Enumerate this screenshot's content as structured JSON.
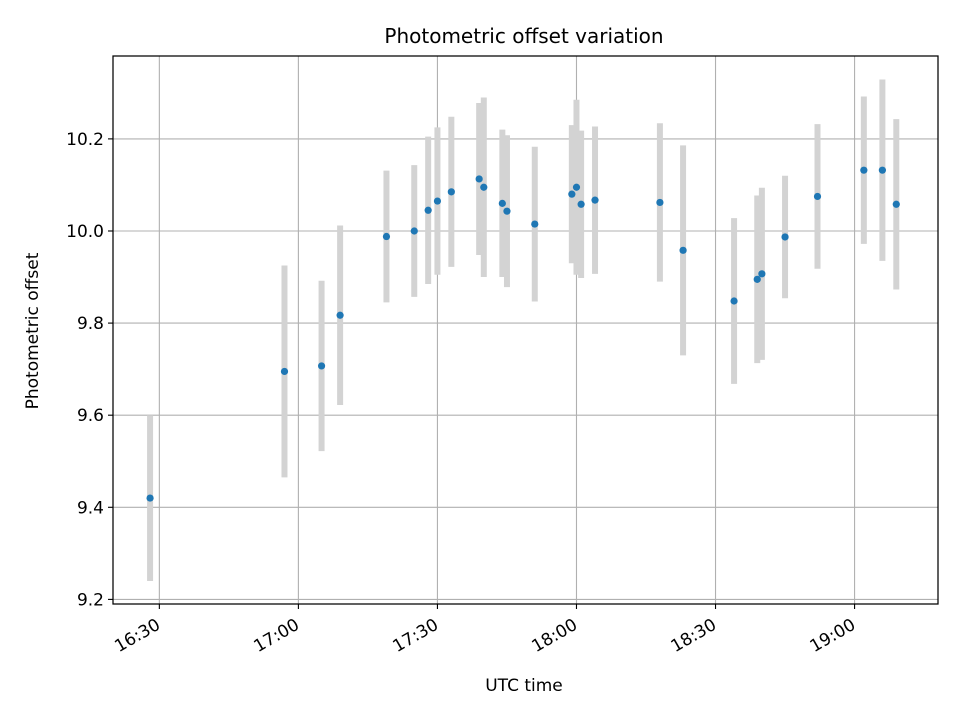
{
  "chart_data": {
    "type": "scatter",
    "title": "Photometric offset variation",
    "xlabel": "UTC time",
    "ylabel": "Photometric offset",
    "x_ticks": [
      "16:30",
      "17:00",
      "17:30",
      "18:00",
      "18:30",
      "19:00"
    ],
    "y_ticks": [
      "9.2",
      "9.4",
      "9.6",
      "9.8",
      "10.0",
      "10.2"
    ],
    "xlim": [
      "16:20",
      "19:18"
    ],
    "ylim": [
      9.19,
      10.38
    ],
    "grid": true,
    "colors": {
      "point": "#1f77b4",
      "errorbar": "#d3d3d3",
      "grid": "#b0b0b0"
    },
    "points": [
      {
        "x": "16:28",
        "y": 9.42,
        "yerr": 0.18
      },
      {
        "x": "16:57",
        "y": 9.695,
        "yerr": 0.23
      },
      {
        "x": "17:05",
        "y": 9.707,
        "yerr": 0.185
      },
      {
        "x": "17:09",
        "y": 9.817,
        "yerr": 0.195
      },
      {
        "x": "17:19",
        "y": 9.988,
        "yerr": 0.143
      },
      {
        "x": "17:25",
        "y": 10.0,
        "yerr": 0.143
      },
      {
        "x": "17:28",
        "y": 10.045,
        "yerr": 0.16
      },
      {
        "x": "17:30",
        "y": 10.065,
        "yerr": 0.16
      },
      {
        "x": "17:33",
        "y": 10.085,
        "yerr": 0.163
      },
      {
        "x": "17:39",
        "y": 10.113,
        "yerr": 0.165
      },
      {
        "x": "17:40",
        "y": 10.095,
        "yerr": 0.195
      },
      {
        "x": "17:44",
        "y": 10.06,
        "yerr": 0.16
      },
      {
        "x": "17:45",
        "y": 10.043,
        "yerr": 0.165
      },
      {
        "x": "17:51",
        "y": 10.015,
        "yerr": 0.168
      },
      {
        "x": "17:59",
        "y": 10.08,
        "yerr": 0.15
      },
      {
        "x": "18:00",
        "y": 10.095,
        "yerr": 0.19
      },
      {
        "x": "18:01",
        "y": 10.058,
        "yerr": 0.16
      },
      {
        "x": "18:04",
        "y": 10.067,
        "yerr": 0.16
      },
      {
        "x": "18:18",
        "y": 10.062,
        "yerr": 0.172
      },
      {
        "x": "18:23",
        "y": 9.958,
        "yerr": 0.228
      },
      {
        "x": "18:34",
        "y": 9.848,
        "yerr": 0.18
      },
      {
        "x": "18:39",
        "y": 9.895,
        "yerr": 0.182
      },
      {
        "x": "18:40",
        "y": 9.907,
        "yerr": 0.187
      },
      {
        "x": "18:45",
        "y": 9.987,
        "yerr": 0.133
      },
      {
        "x": "18:52",
        "y": 10.075,
        "yerr": 0.157
      },
      {
        "x": "19:02",
        "y": 10.132,
        "yerr": 0.16
      },
      {
        "x": "19:06",
        "y": 10.132,
        "yerr": 0.197
      },
      {
        "x": "19:09",
        "y": 10.058,
        "yerr": 0.185
      }
    ]
  }
}
